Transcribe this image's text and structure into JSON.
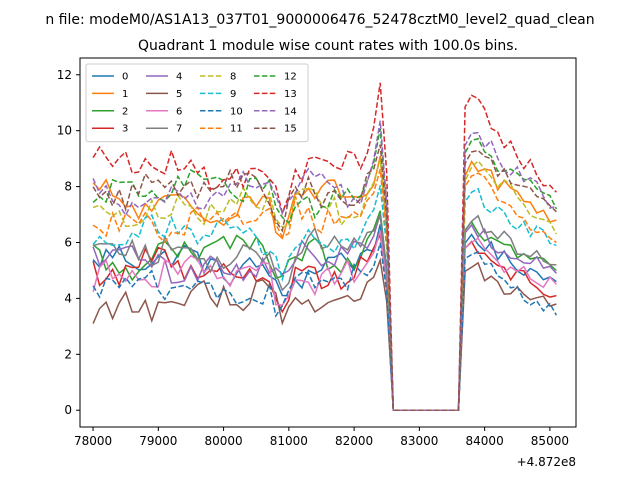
{
  "chart_data": {
    "type": "line",
    "suptitle": "n file: modeM0/AS1A13_037T01_9000006476_52478cztM0_level2_quad_clean",
    "title": "Quadrant 1 module wise count rates with 100.0s bins.",
    "xlabel": "",
    "ylabel": "",
    "offset_text": "+4.872e8",
    "xlim": [
      77800,
      85400
    ],
    "ylim": [
      -0.6,
      12.6
    ],
    "x_ticks": [
      78000,
      79000,
      80000,
      81000,
      82000,
      83000,
      84000,
      85000
    ],
    "y_ticks": [
      0,
      2,
      4,
      6,
      8,
      10,
      12
    ],
    "x_tick_labels": [
      "78000",
      "79000",
      "80000",
      "81000",
      "82000",
      "83000",
      "84000",
      "85000"
    ],
    "y_tick_labels": [
      "0",
      "2",
      "4",
      "6",
      "8",
      "10",
      "12"
    ],
    "grid": false,
    "legend_position": "top-left",
    "legend_columns": 4,
    "x_start": 78000,
    "x_step": 100,
    "gap": {
      "start_index": 46,
      "end_index": 56,
      "note": "all series drop to 0 between ~82700 and ~83600"
    },
    "series": [
      {
        "name": "0",
        "color": "#1f77b4",
        "dash": "solid",
        "base": 5.2,
        "peak": 6.5,
        "post": 5.6,
        "end": 4.6
      },
      {
        "name": "1",
        "color": "#ff7f0e",
        "dash": "solid",
        "base": 7.4,
        "peak": 9.1,
        "post": 8.3,
        "end": 6.8
      },
      {
        "name": "2",
        "color": "#2ca02c",
        "dash": "solid",
        "base": 5.6,
        "peak": 7.0,
        "post": 6.0,
        "end": 5.0
      },
      {
        "name": "3",
        "color": "#d62728",
        "dash": "solid",
        "base": 5.0,
        "peak": 6.3,
        "post": 5.3,
        "end": 4.1
      },
      {
        "name": "4",
        "color": "#9467bd",
        "dash": "solid",
        "base": 5.3,
        "peak": 6.9,
        "post": 5.9,
        "end": 4.9
      },
      {
        "name": "5",
        "color": "#8c564b",
        "dash": "solid",
        "base": 3.9,
        "peak": 5.4,
        "post": 4.4,
        "end": 3.8
      },
      {
        "name": "6",
        "color": "#e377c2",
        "dash": "solid",
        "base": 4.8,
        "peak": 6.3,
        "post": 5.3,
        "end": 4.5
      },
      {
        "name": "7",
        "color": "#7f7f7f",
        "dash": "solid",
        "base": 5.7,
        "peak": 7.0,
        "post": 6.3,
        "end": 5.2
      },
      {
        "name": "8",
        "color": "#bcbd22",
        "dash": "dashed",
        "base": 7.3,
        "peak": 8.9,
        "post": 8.4,
        "end": 6.3
      },
      {
        "name": "9",
        "color": "#17becf",
        "dash": "dashed",
        "base": 6.2,
        "peak": 8.1,
        "post": 7.2,
        "end": 5.9
      },
      {
        "name": "10",
        "color": "#1f77b4",
        "dash": "dashed",
        "base": 4.4,
        "peak": 5.9,
        "post": 4.9,
        "end": 3.4
      },
      {
        "name": "11",
        "color": "#ff7f0e",
        "dash": "dashed",
        "base": 6.9,
        "peak": 8.7,
        "post": 7.8,
        "end": 6.0
      },
      {
        "name": "12",
        "color": "#2ca02c",
        "dash": "dashed",
        "base": 7.8,
        "peak": 10.0,
        "post": 9.0,
        "end": 7.2
      },
      {
        "name": "13",
        "color": "#d62728",
        "dash": "dashed",
        "base": 8.6,
        "peak": 11.8,
        "post": 10.0,
        "end": 7.8
      },
      {
        "name": "14",
        "color": "#9467bd",
        "dash": "dashed",
        "base": 7.8,
        "peak": 10.3,
        "post": 9.2,
        "end": 7.3
      },
      {
        "name": "15",
        "color": "#8c564b",
        "dash": "dashed",
        "base": 7.9,
        "peak": 9.6,
        "post": 8.7,
        "end": 7.1
      }
    ]
  }
}
